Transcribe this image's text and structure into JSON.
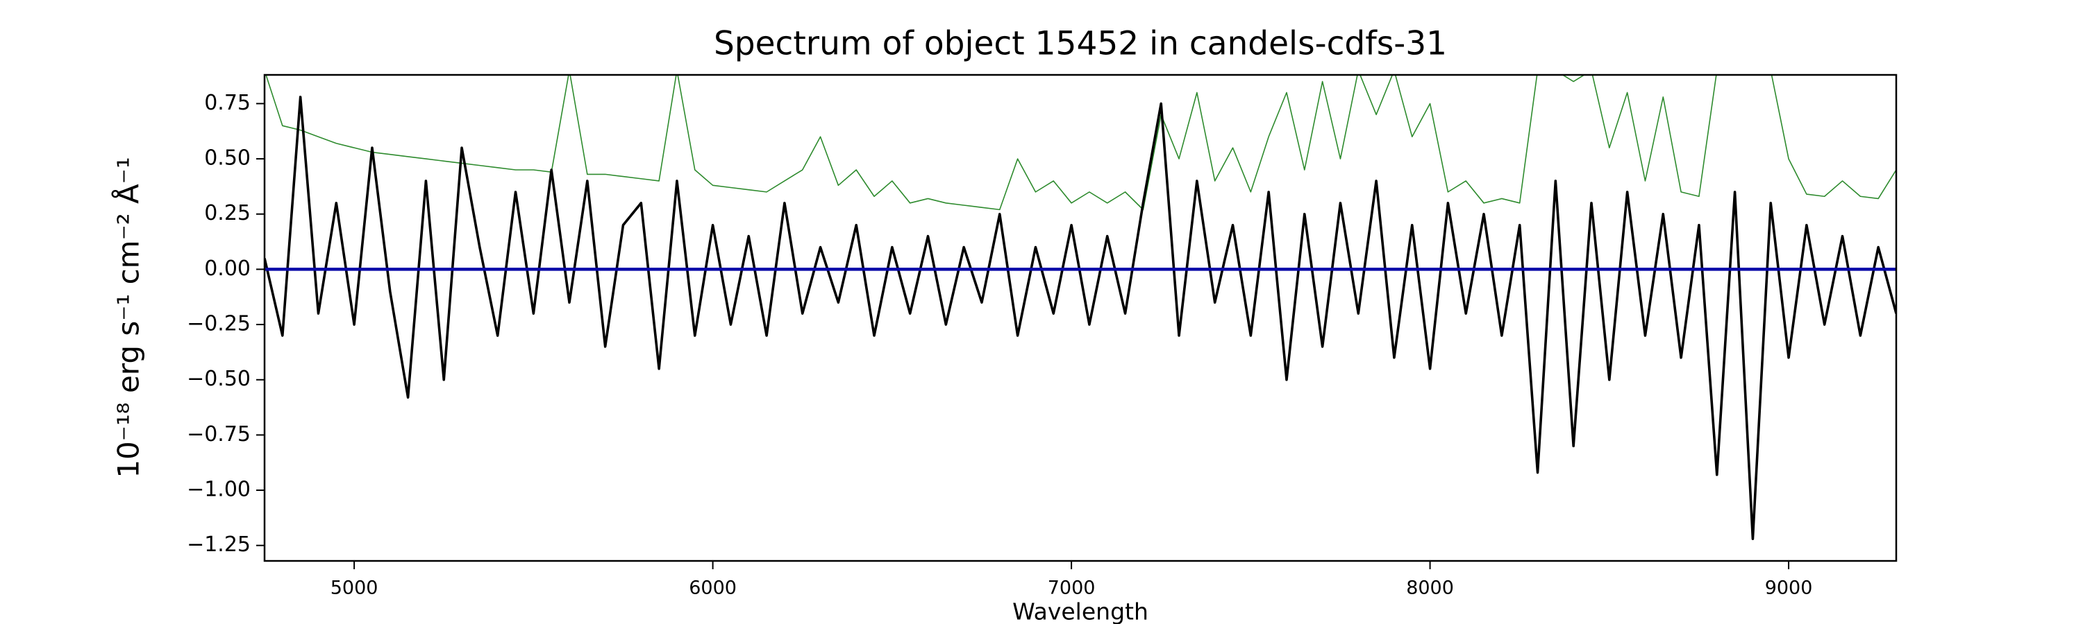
{
  "chart_data": {
    "type": "line",
    "title": "Spectrum of object 15452 in candels-cdfs-31",
    "xlabel": "Wavelength",
    "ylabel": "10⁻¹⁸ erg s⁻¹ cm⁻² Å⁻¹",
    "xlim": [
      4750,
      9300
    ],
    "ylim": [
      -1.32,
      0.88
    ],
    "xticks": [
      5000,
      6000,
      7000,
      8000,
      9000
    ],
    "yticks": [
      {
        "value": -1.25,
        "label": "−1.25"
      },
      {
        "value": -1.0,
        "label": "−1.00"
      },
      {
        "value": -0.75,
        "label": "−0.75"
      },
      {
        "value": -0.5,
        "label": "−0.50"
      },
      {
        "value": -0.25,
        "label": "−0.25"
      },
      {
        "value": 0.0,
        "label": "0.00"
      },
      {
        "value": 0.25,
        "label": "0.25"
      },
      {
        "value": 0.5,
        "label": "0.50"
      },
      {
        "value": 0.75,
        "label": "0.75"
      }
    ],
    "grid": false,
    "x": [
      4750,
      4800,
      4850,
      4900,
      4950,
      5000,
      5050,
      5100,
      5150,
      5200,
      5250,
      5300,
      5350,
      5400,
      5450,
      5500,
      5550,
      5600,
      5650,
      5700,
      5750,
      5800,
      5850,
      5900,
      5950,
      6000,
      6050,
      6100,
      6150,
      6200,
      6250,
      6300,
      6350,
      6400,
      6450,
      6500,
      6550,
      6600,
      6650,
      6700,
      6750,
      6800,
      6850,
      6900,
      6950,
      7000,
      7050,
      7100,
      7150,
      7200,
      7250,
      7300,
      7350,
      7400,
      7450,
      7500,
      7550,
      7600,
      7650,
      7700,
      7750,
      7800,
      7850,
      7900,
      7950,
      8000,
      8050,
      8100,
      8150,
      8200,
      8250,
      8300,
      8350,
      8400,
      8450,
      8500,
      8550,
      8600,
      8650,
      8700,
      8750,
      8800,
      8850,
      8900,
      8950,
      9000,
      9050,
      9100,
      9150,
      9200,
      9250,
      9300
    ],
    "series": [
      {
        "color": "#2e8b2e",
        "width": 1.6,
        "values": [
          0.9,
          0.65,
          0.63,
          0.6,
          0.57,
          0.55,
          0.53,
          0.52,
          0.51,
          0.5,
          0.49,
          0.48,
          0.47,
          0.46,
          0.45,
          0.45,
          0.44,
          0.9,
          0.43,
          0.43,
          0.42,
          0.41,
          0.4,
          0.9,
          0.45,
          0.38,
          0.37,
          0.36,
          0.35,
          0.4,
          0.45,
          0.6,
          0.38,
          0.45,
          0.33,
          0.4,
          0.3,
          0.32,
          0.3,
          0.29,
          0.28,
          0.27,
          0.5,
          0.35,
          0.4,
          0.3,
          0.35,
          0.3,
          0.35,
          0.27,
          0.7,
          0.5,
          0.8,
          0.4,
          0.55,
          0.35,
          0.6,
          0.8,
          0.45,
          0.85,
          0.5,
          0.9,
          0.7,
          0.9,
          0.6,
          0.75,
          0.35,
          0.4,
          0.3,
          0.32,
          0.3,
          0.9,
          0.9,
          0.85,
          0.9,
          0.55,
          0.8,
          0.4,
          0.78,
          0.35,
          0.33,
          0.9,
          0.9,
          0.9,
          0.9,
          0.5,
          0.34,
          0.33,
          0.4,
          0.33,
          0.32,
          0.45
        ]
      },
      {
        "color": "#000000",
        "width": 3.6,
        "values": [
          0.05,
          -0.3,
          0.78,
          -0.2,
          0.3,
          -0.25,
          0.55,
          -0.1,
          -0.58,
          0.4,
          -0.5,
          0.55,
          0.1,
          -0.3,
          0.35,
          -0.2,
          0.45,
          -0.15,
          0.4,
          -0.35,
          0.2,
          0.3,
          -0.45,
          0.4,
          -0.3,
          0.2,
          -0.25,
          0.15,
          -0.3,
          0.3,
          -0.2,
          0.1,
          -0.15,
          0.2,
          -0.3,
          0.1,
          -0.2,
          0.15,
          -0.25,
          0.1,
          -0.15,
          0.25,
          -0.3,
          0.1,
          -0.2,
          0.2,
          -0.25,
          0.15,
          -0.2,
          0.3,
          0.75,
          -0.3,
          0.4,
          -0.15,
          0.2,
          -0.3,
          0.35,
          -0.5,
          0.25,
          -0.35,
          0.3,
          -0.2,
          0.4,
          -0.4,
          0.2,
          -0.45,
          0.3,
          -0.2,
          0.25,
          -0.3,
          0.2,
          -0.92,
          0.4,
          -0.8,
          0.3,
          -0.5,
          0.35,
          -0.3,
          0.25,
          -0.4,
          0.2,
          -0.93,
          0.35,
          -1.22,
          0.3,
          -0.4,
          0.2,
          -0.25,
          0.15,
          -0.3,
          0.1,
          -0.2
        ]
      },
      {
        "color": "#0a0aa8",
        "width": 4.5,
        "values": [
          0,
          0,
          0,
          0,
          0,
          0,
          0,
          0,
          0,
          0,
          0,
          0,
          0,
          0,
          0,
          0,
          0,
          0,
          0,
          0,
          0,
          0,
          0,
          0,
          0,
          0,
          0,
          0,
          0,
          0,
          0,
          0,
          0,
          0,
          0,
          0,
          0,
          0,
          0,
          0,
          0,
          0,
          0,
          0,
          0,
          0,
          0,
          0,
          0,
          0,
          0,
          0,
          0,
          0,
          0,
          0,
          0,
          0,
          0,
          0,
          0,
          0,
          0,
          0,
          0,
          0,
          0,
          0,
          0,
          0,
          0,
          0,
          0,
          0,
          0,
          0,
          0,
          0,
          0,
          0,
          0,
          0,
          0,
          0,
          0,
          0,
          0,
          0,
          0,
          0,
          0,
          0
        ]
      }
    ]
  }
}
